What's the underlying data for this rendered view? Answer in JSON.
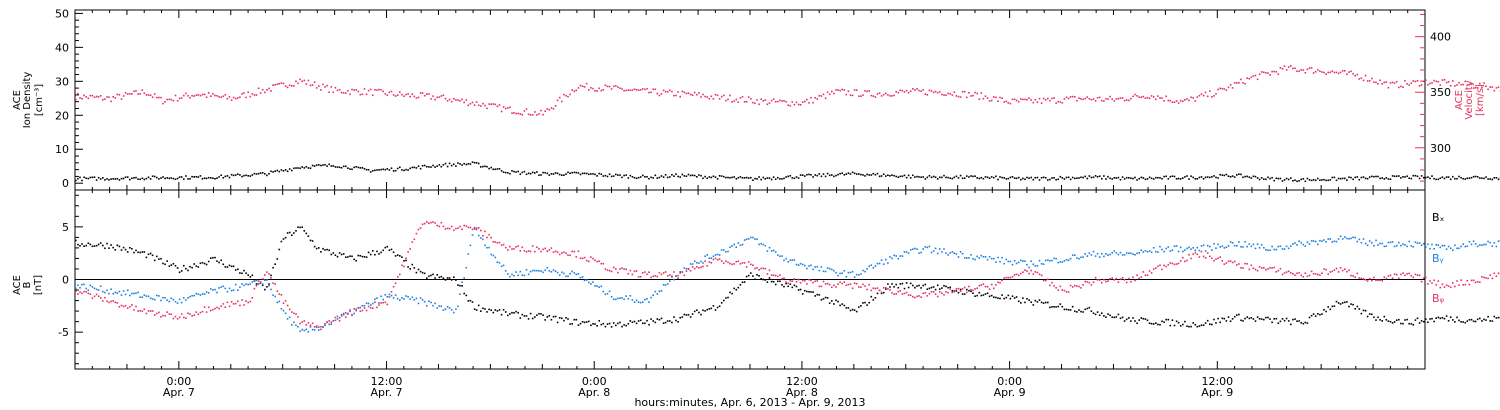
{
  "chart_data": [
    {
      "type": "scatter",
      "panel": "top",
      "left_axis": {
        "label_lines": [
          "ACE",
          "Ion Density",
          "[cm⁻³]"
        ],
        "ylim": [
          -2,
          51
        ],
        "ticks": [
          0,
          10,
          20,
          30,
          40,
          50
        ]
      },
      "right_axis": {
        "label_lines": [
          "ACE",
          "Velocity",
          "[km/s]"
        ],
        "ylim": [
          262,
          424
        ],
        "ticks": [
          300,
          350,
          400
        ],
        "color": "#e8305e"
      },
      "series": [
        {
          "axis": "right",
          "color": "#e8305e",
          "x_hours": [
            0,
            2,
            4,
            5,
            7,
            9,
            11,
            13,
            15,
            17,
            19,
            21,
            23,
            25,
            27,
            29,
            31,
            33,
            35,
            36,
            37,
            38,
            40,
            42,
            44,
            46,
            48,
            50,
            52,
            54,
            56,
            58,
            60,
            62,
            64,
            66,
            68,
            70,
            72,
            74,
            76,
            78,
            80,
            82,
            84,
            86,
            88,
            89,
            90
          ],
          "values": [
            347,
            345,
            351,
            343,
            349,
            345,
            353,
            361,
            352,
            351,
            348,
            346,
            341,
            335,
            331,
            356,
            354,
            351,
            349,
            348,
            346,
            345,
            342,
            341,
            351,
            349,
            351,
            351,
            348,
            342,
            343,
            345,
            344,
            348,
            342,
            351,
            364,
            372,
            370,
            366,
            357,
            360,
            358,
            355,
            338,
            352,
            360,
            353,
            351
          ]
        },
        {
          "axis": "left",
          "color": "#000000",
          "x_hours": [
            0,
            4,
            8,
            11,
            13,
            15,
            17,
            19,
            21,
            23,
            25,
            27,
            29,
            31,
            33,
            35,
            37,
            39,
            41,
            43,
            45,
            47,
            49,
            51,
            53,
            55,
            57,
            59,
            61,
            63,
            65,
            67,
            69,
            71,
            73,
            75,
            77,
            79,
            81,
            83,
            85,
            87,
            89,
            90
          ],
          "values": [
            1.5,
            1.8,
            2.0,
            3.0,
            5.0,
            5.5,
            4.0,
            4.5,
            5.5,
            6.0,
            3.5,
            3.0,
            3.0,
            2.5,
            2.0,
            2.5,
            2.0,
            1.5,
            2.0,
            2.5,
            3.0,
            2.5,
            2.0,
            2.0,
            1.8,
            1.5,
            1.8,
            2.0,
            1.5,
            1.8,
            2.0,
            2.5,
            1.5,
            1.2,
            1.5,
            1.8,
            2.0,
            1.8,
            2.0,
            1.5,
            1.8,
            1.8,
            1.5,
            1.8
          ]
        }
      ]
    },
    {
      "type": "scatter",
      "panel": "bottom",
      "left_axis": {
        "label_lines": [
          "ACE",
          "B",
          "[nT]"
        ],
        "ylim": [
          -8.5,
          8.5
        ],
        "ticks": [
          -5,
          0,
          5
        ]
      },
      "series": [
        {
          "name": "Bx",
          "legend": "Bₓ",
          "color": "#000000",
          "x_hours": [
            0,
            2,
            4,
            6,
            8,
            10,
            11,
            12,
            13,
            14,
            16,
            18,
            20,
            22,
            23,
            25,
            27,
            29,
            31,
            33,
            35,
            37,
            39,
            41,
            43,
            45,
            47,
            49,
            51,
            53,
            55,
            57,
            59,
            61,
            63,
            65,
            67,
            69,
            71,
            73,
            75,
            77,
            79,
            81,
            83,
            85,
            87,
            89,
            90
          ],
          "values": [
            3.5,
            3.3,
            2.5,
            1.0,
            2.0,
            0.5,
            -1.0,
            4.0,
            5.0,
            3.0,
            2.0,
            3.0,
            0.5,
            0.0,
            -2.5,
            -3.2,
            -3.5,
            -4.0,
            -4.2,
            -4.0,
            -3.6,
            -2.5,
            0.5,
            -0.5,
            -1.5,
            -3.0,
            -0.5,
            -0.5,
            -1.0,
            -1.5,
            -2.0,
            -2.5,
            -3.0,
            -3.8,
            -4.0,
            -4.2,
            -3.5,
            -3.8,
            -4.0,
            -2.0,
            -3.5,
            -4.0,
            -3.6,
            -3.8,
            -3.5,
            -4.0,
            -3.5,
            -3.2,
            -1.5
          ]
        },
        {
          "name": "By",
          "legend": "Bᵧ",
          "color": "#1f7fe0",
          "x_hours": [
            0,
            2,
            4,
            6,
            8,
            10,
            11,
            12,
            13,
            14,
            16,
            18,
            20,
            22,
            23,
            25,
            27,
            29,
            31,
            33,
            35,
            37,
            39,
            41,
            43,
            45,
            47,
            49,
            51,
            53,
            55,
            57,
            59,
            61,
            63,
            65,
            67,
            69,
            71,
            73,
            75,
            77,
            79,
            81,
            83,
            85,
            87,
            89,
            90
          ],
          "values": [
            -0.5,
            -1.0,
            -1.5,
            -2.0,
            -1.0,
            -0.5,
            0.0,
            -3.0,
            -5.0,
            -4.5,
            -3.0,
            -1.5,
            -2.0,
            -3.0,
            5.0,
            0.5,
            1.0,
            0.5,
            -1.5,
            -2.0,
            1.0,
            2.5,
            4.0,
            2.0,
            1.0,
            0.5,
            2.0,
            3.0,
            2.5,
            2.0,
            1.5,
            2.0,
            2.5,
            2.5,
            3.0,
            3.0,
            3.5,
            3.0,
            3.5,
            4.0,
            3.5,
            3.5,
            3.0,
            3.5,
            3.5,
            4.0,
            4.0,
            4.5,
            5.0
          ]
        },
        {
          "name": "Bz",
          "legend": "Bᵩ",
          "color": "#e8305e",
          "x_hours": [
            0,
            2,
            4,
            6,
            8,
            10,
            11,
            12,
            13,
            14,
            16,
            18,
            20,
            22,
            23,
            25,
            27,
            29,
            31,
            33,
            35,
            37,
            39,
            41,
            43,
            45,
            47,
            49,
            51,
            53,
            55,
            57,
            59,
            61,
            63,
            65,
            67,
            69,
            71,
            73,
            75,
            77,
            79,
            81,
            83,
            85,
            87,
            89,
            90
          ],
          "values": [
            -1.0,
            -2.0,
            -3.0,
            -3.5,
            -2.5,
            -2.0,
            1.0,
            -2.0,
            -4.0,
            -4.5,
            -3.0,
            -2.0,
            5.5,
            5.0,
            5.0,
            3.0,
            3.0,
            2.5,
            1.0,
            0.5,
            0.5,
            2.0,
            1.5,
            0.0,
            -0.3,
            -0.5,
            -1.0,
            -1.5,
            -1.0,
            -0.5,
            1.0,
            -1.0,
            0.0,
            0.0,
            1.5,
            2.5,
            1.5,
            1.0,
            0.5,
            1.0,
            0.0,
            0.5,
            -0.5,
            0.0,
            1.0,
            0.5,
            1.0,
            1.5,
            2.0
          ]
        }
      ]
    }
  ],
  "x_axis": {
    "major_ticks": [
      {
        "hours": 6,
        "time": "0:00",
        "date": "Apr. 7"
      },
      {
        "hours": 18,
        "time": "12:00",
        "date": "Apr. 7"
      },
      {
        "hours": 30,
        "time": "0:00",
        "date": "Apr. 8"
      },
      {
        "hours": 42,
        "time": "12:00",
        "date": "Apr. 8"
      },
      {
        "hours": 54,
        "time": "0:00",
        "date": "Apr. 9"
      },
      {
        "hours": 66,
        "time": "12:00",
        "date": "Apr. 9"
      }
    ],
    "title": "hours:minutes, Apr.  6, 2013 - Apr.  9, 2013",
    "range_hours": [
      0,
      78
    ]
  }
}
